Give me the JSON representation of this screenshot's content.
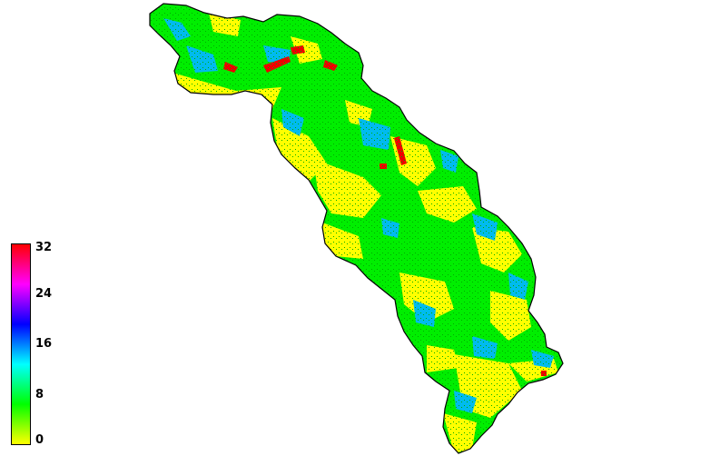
{
  "legend": {
    "ticks": [
      {
        "label": "32",
        "value": 32
      },
      {
        "label": "24",
        "value": 24
      },
      {
        "label": "16",
        "value": 16
      },
      {
        "label": "8",
        "value": 8
      },
      {
        "label": "0",
        "value": 0
      }
    ],
    "range": [
      0,
      32
    ],
    "colors": [
      "#ffff00",
      "#00ff00",
      "#00ffff",
      "#0000ff",
      "#ff00ff",
      "#ff0000"
    ]
  },
  "map": {
    "background": "#ffffff",
    "outline_color": "#000000",
    "class_colors": {
      "low": "#ffff00",
      "mid": "#00ee00",
      "high": "#00bbee",
      "peak": "#ee0000"
    }
  }
}
